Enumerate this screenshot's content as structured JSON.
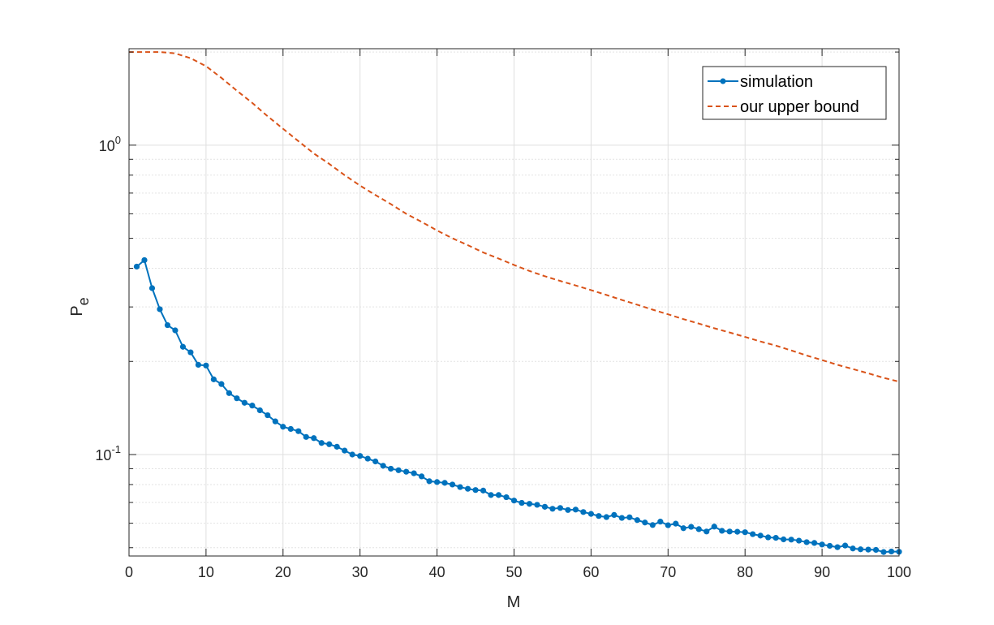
{
  "chart_data": {
    "type": "line",
    "xlabel": "M",
    "ylabel": "P",
    "ylabel_subscript": "e",
    "y_scale": "log",
    "xlim": [
      0,
      100
    ],
    "ylim": [
      0.047,
      2.05
    ],
    "x_ticks": [
      0,
      10,
      20,
      30,
      40,
      50,
      60,
      70,
      80,
      90,
      100
    ],
    "y_ticks": [
      {
        "value": 1,
        "base": "10",
        "exp": "0"
      },
      {
        "value": 0.1,
        "base": "10",
        "exp": "-1"
      }
    ],
    "grid": true,
    "minor_grid": true,
    "legend_position": "top-right",
    "series": [
      {
        "name": "simulation",
        "color": "#0072BD",
        "style": "solid-with-markers",
        "x": [
          1,
          2,
          3,
          4,
          5,
          6,
          7,
          8,
          9,
          10,
          11,
          12,
          13,
          14,
          15,
          16,
          17,
          18,
          19,
          20,
          21,
          22,
          23,
          24,
          25,
          26,
          27,
          28,
          29,
          30,
          31,
          32,
          33,
          34,
          35,
          36,
          37,
          38,
          39,
          40,
          41,
          42,
          43,
          44,
          45,
          46,
          47,
          48,
          49,
          50,
          51,
          52,
          53,
          54,
          55,
          56,
          57,
          58,
          59,
          60,
          61,
          62,
          63,
          64,
          65,
          66,
          67,
          68,
          69,
          70,
          71,
          72,
          73,
          74,
          75,
          76,
          77,
          78,
          79,
          80,
          81,
          82,
          83,
          84,
          85,
          86,
          87,
          88,
          89,
          90,
          91,
          92,
          93,
          94,
          95,
          96,
          97,
          98,
          99,
          100
        ],
        "y": [
          0.405,
          0.425,
          0.345,
          0.295,
          0.262,
          0.252,
          0.223,
          0.214,
          0.195,
          0.194,
          0.175,
          0.169,
          0.158,
          0.152,
          0.147,
          0.144,
          0.139,
          0.134,
          0.128,
          0.123,
          0.121,
          0.119,
          0.114,
          0.113,
          0.109,
          0.108,
          0.106,
          0.103,
          0.1,
          0.099,
          0.097,
          0.095,
          0.092,
          0.09,
          0.089,
          0.088,
          0.087,
          0.085,
          0.082,
          0.0815,
          0.081,
          0.08,
          0.0785,
          0.0775,
          0.0768,
          0.0765,
          0.074,
          0.074,
          0.0728,
          0.071,
          0.0698,
          0.0693,
          0.0688,
          0.0678,
          0.0668,
          0.0672,
          0.0662,
          0.0664,
          0.0652,
          0.0643,
          0.0633,
          0.0628,
          0.0638,
          0.0624,
          0.0627,
          0.0614,
          0.0603,
          0.0592,
          0.0607,
          0.0591,
          0.0598,
          0.0578,
          0.0584,
          0.0574,
          0.0564,
          0.0585,
          0.0567,
          0.0564,
          0.0563,
          0.0561,
          0.0553,
          0.0547,
          0.054,
          0.0538,
          0.0532,
          0.0531,
          0.0527,
          0.0521,
          0.0518,
          0.0512,
          0.0507,
          0.0502,
          0.0508,
          0.0497,
          0.0494,
          0.0493,
          0.0492,
          0.0484,
          0.0486,
          0.0485
        ]
      },
      {
        "name": "our upper bound",
        "color": "#D95319",
        "style": "dashed",
        "x": [
          0,
          2,
          4,
          6,
          8,
          10,
          12,
          14,
          16,
          18,
          20,
          22,
          24,
          26,
          28,
          30,
          32,
          34,
          36,
          38,
          40,
          42,
          44,
          46,
          48,
          50,
          52,
          54,
          56,
          58,
          60,
          62,
          64,
          66,
          68,
          70,
          72,
          74,
          76,
          78,
          80,
          82,
          84,
          86,
          88,
          90,
          92,
          94,
          96,
          98,
          100
        ],
        "y": [
          2.0,
          2.0,
          2.0,
          1.98,
          1.91,
          1.8,
          1.65,
          1.5,
          1.37,
          1.24,
          1.13,
          1.03,
          0.94,
          0.87,
          0.8,
          0.74,
          0.69,
          0.645,
          0.6,
          0.565,
          0.53,
          0.5,
          0.475,
          0.45,
          0.43,
          0.41,
          0.392,
          0.377,
          0.364,
          0.352,
          0.34,
          0.328,
          0.316,
          0.305,
          0.294,
          0.284,
          0.274,
          0.265,
          0.256,
          0.248,
          0.24,
          0.232,
          0.225,
          0.217,
          0.209,
          0.202,
          0.195,
          0.189,
          0.183,
          0.177,
          0.172
        ]
      }
    ]
  }
}
